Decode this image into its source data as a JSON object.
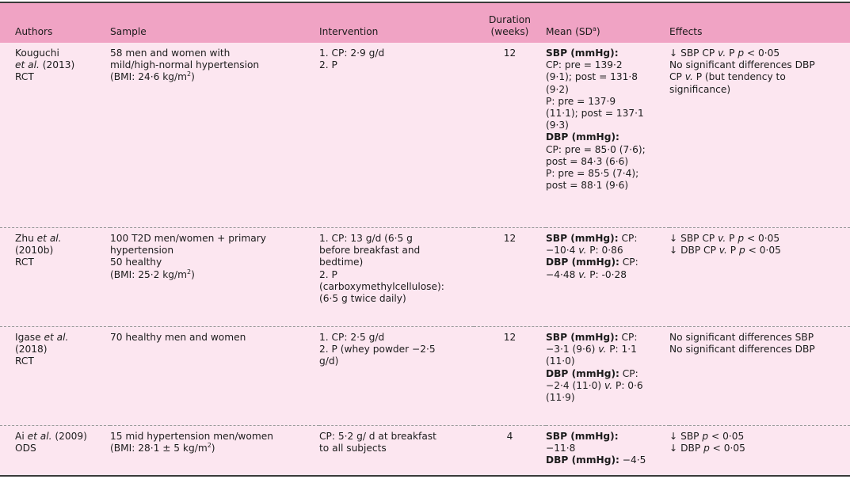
{
  "colors": {
    "header_bg": "#f0a3c4",
    "body_bg": "#fce6f0",
    "rule": "#3a3a3a",
    "separator": "#9a9a9a"
  },
  "table": {
    "headers": {
      "authors": "Authors",
      "sample": "Sample",
      "intervention": "Intervention",
      "duration_line1": "Duration",
      "duration_line2": "(weeks)",
      "mean_prefix": "Mean (SD",
      "mean_sup": "a",
      "mean_suffix": ")",
      "effects": "Effects"
    },
    "rows": [
      {
        "authors": {
          "line1": "Kouguchi",
          "etal": "et al.",
          "year": " (2013)",
          "design": "RCT"
        },
        "sample": {
          "line1": "58 men and women with",
          "line2": "mild/high-normal hypertension",
          "bmi_prefix": "(BMI: 24·6 kg/m",
          "bmi_sup": "2",
          "bmi_suffix": ")"
        },
        "intervention": [
          "1. CP: 2·9 g/d",
          "2. P"
        ],
        "duration": "12",
        "mean": {
          "sbp_label": "SBP (mmHg):",
          "sbp_lines": [
            "CP: pre = 139·2",
            "(9·1); post = 131·8",
            "(9·2)",
            "P: pre = 137·9",
            "(11·1); post = 137·1",
            "(9·3)"
          ],
          "dbp_label": "DBP (mmHg):",
          "dbp_lines": [
            "CP: pre = 85·0 (7·6);",
            "post = 84·3 (6·6)",
            "P: pre = 85·5 (7·4);",
            "post = 88·1 (9·6)"
          ]
        },
        "effects": {
          "l1_a": "↓ SBP CP ",
          "l1_v": "v.",
          "l1_b": " P ",
          "l1_p": "p",
          "l1_c": " < 0·05",
          "l2": "No significant differences DBP",
          "l3_a": "CP ",
          "l3_v": "v.",
          "l3_b": " P (but tendency to",
          "l4": "significance)"
        }
      },
      {
        "authors": {
          "name": "Zhu ",
          "etal": "et al.",
          "year": "(2010b)",
          "design": "RCT"
        },
        "sample": {
          "line1": "100 T2D men/women + primary",
          "line2": "hypertension",
          "line3": "50 healthy",
          "bmi_prefix": "(BMI: 25·2 kg/m",
          "bmi_sup": "2",
          "bmi_suffix": ")"
        },
        "intervention": [
          "1. CP: 13 g/d (6·5 g",
          "before breakfast and",
          "bedtime)",
          "2. P",
          "(carboxymethylcellulose):",
          "(6·5 g twice daily)"
        ],
        "duration": "12",
        "mean": {
          "sbp_label": "SBP (mmHg):",
          "sbp_tail": " CP:",
          "sbp_l2_a": "−10·4 ",
          "sbp_l2_v": "v.",
          "sbp_l2_b": " P: 0·86",
          "dbp_label": "DBP (mmHg):",
          "dbp_tail": " CP:",
          "dbp_l2_a": "−4·48 ",
          "dbp_l2_v": "v.",
          "dbp_l2_b": " P: -0·28"
        },
        "effects": {
          "l1_a": "↓ SBP CP ",
          "l1_v": "v.",
          "l1_b": " P ",
          "l1_p": "p",
          "l1_c": " < 0·05",
          "l2_a": "↓ DBP CP ",
          "l2_v": "v.",
          "l2_b": " P ",
          "l2_p": "p",
          "l2_c": " < 0·05"
        }
      },
      {
        "authors": {
          "name": "Igase ",
          "etal": "et al.",
          "year": "(2018)",
          "design": "RCT"
        },
        "sample": {
          "line1": "70 healthy men and women"
        },
        "intervention": [
          "1. CP: 2·5 g/d",
          "2. P (whey powder −2·5",
          "g/d)"
        ],
        "duration": "12",
        "mean": {
          "sbp_label": "SBP (mmHg):",
          "sbp_tail": " CP:",
          "sbp_l2_a": "−3·1 (9·6) ",
          "sbp_l2_v": "v.",
          "sbp_l2_b": " P: 1·1",
          "sbp_l3": "(11·0)",
          "dbp_label": "DBP (mmHg):",
          "dbp_tail": " CP:",
          "dbp_l2_a": "−2·4 (11·0) ",
          "dbp_l2_v": "v.",
          "dbp_l2_b": " P: 0·6",
          "dbp_l3": "(11·9)"
        },
        "effects": {
          "l1": "No significant differences SBP",
          "l2": "No significant differences DBP"
        }
      },
      {
        "authors": {
          "name": "Ai ",
          "etal": "et al.",
          "year": " (2009)",
          "design": "ODS"
        },
        "sample": {
          "line1": "15 mid hypertension men/women",
          "bmi_prefix": "(BMI: 28·1 ± 5 kg/m",
          "bmi_sup": "2",
          "bmi_suffix": ")"
        },
        "intervention": [
          "CP: 5·2 g/ d at breakfast",
          "to all subjects"
        ],
        "duration": "4",
        "mean": {
          "sbp_label": "SBP (mmHg):",
          "sbp_l2": "−11·8",
          "dbp_label": "DBP (mmHg):",
          "dbp_tail": " −4·5"
        },
        "effects": {
          "l1_a": "↓ SBP ",
          "l1_p": "p",
          "l1_c": " < 0·05",
          "l2_a": "↓ DBP ",
          "l2_p": "p",
          "l2_c": " < 0·05"
        }
      }
    ]
  }
}
